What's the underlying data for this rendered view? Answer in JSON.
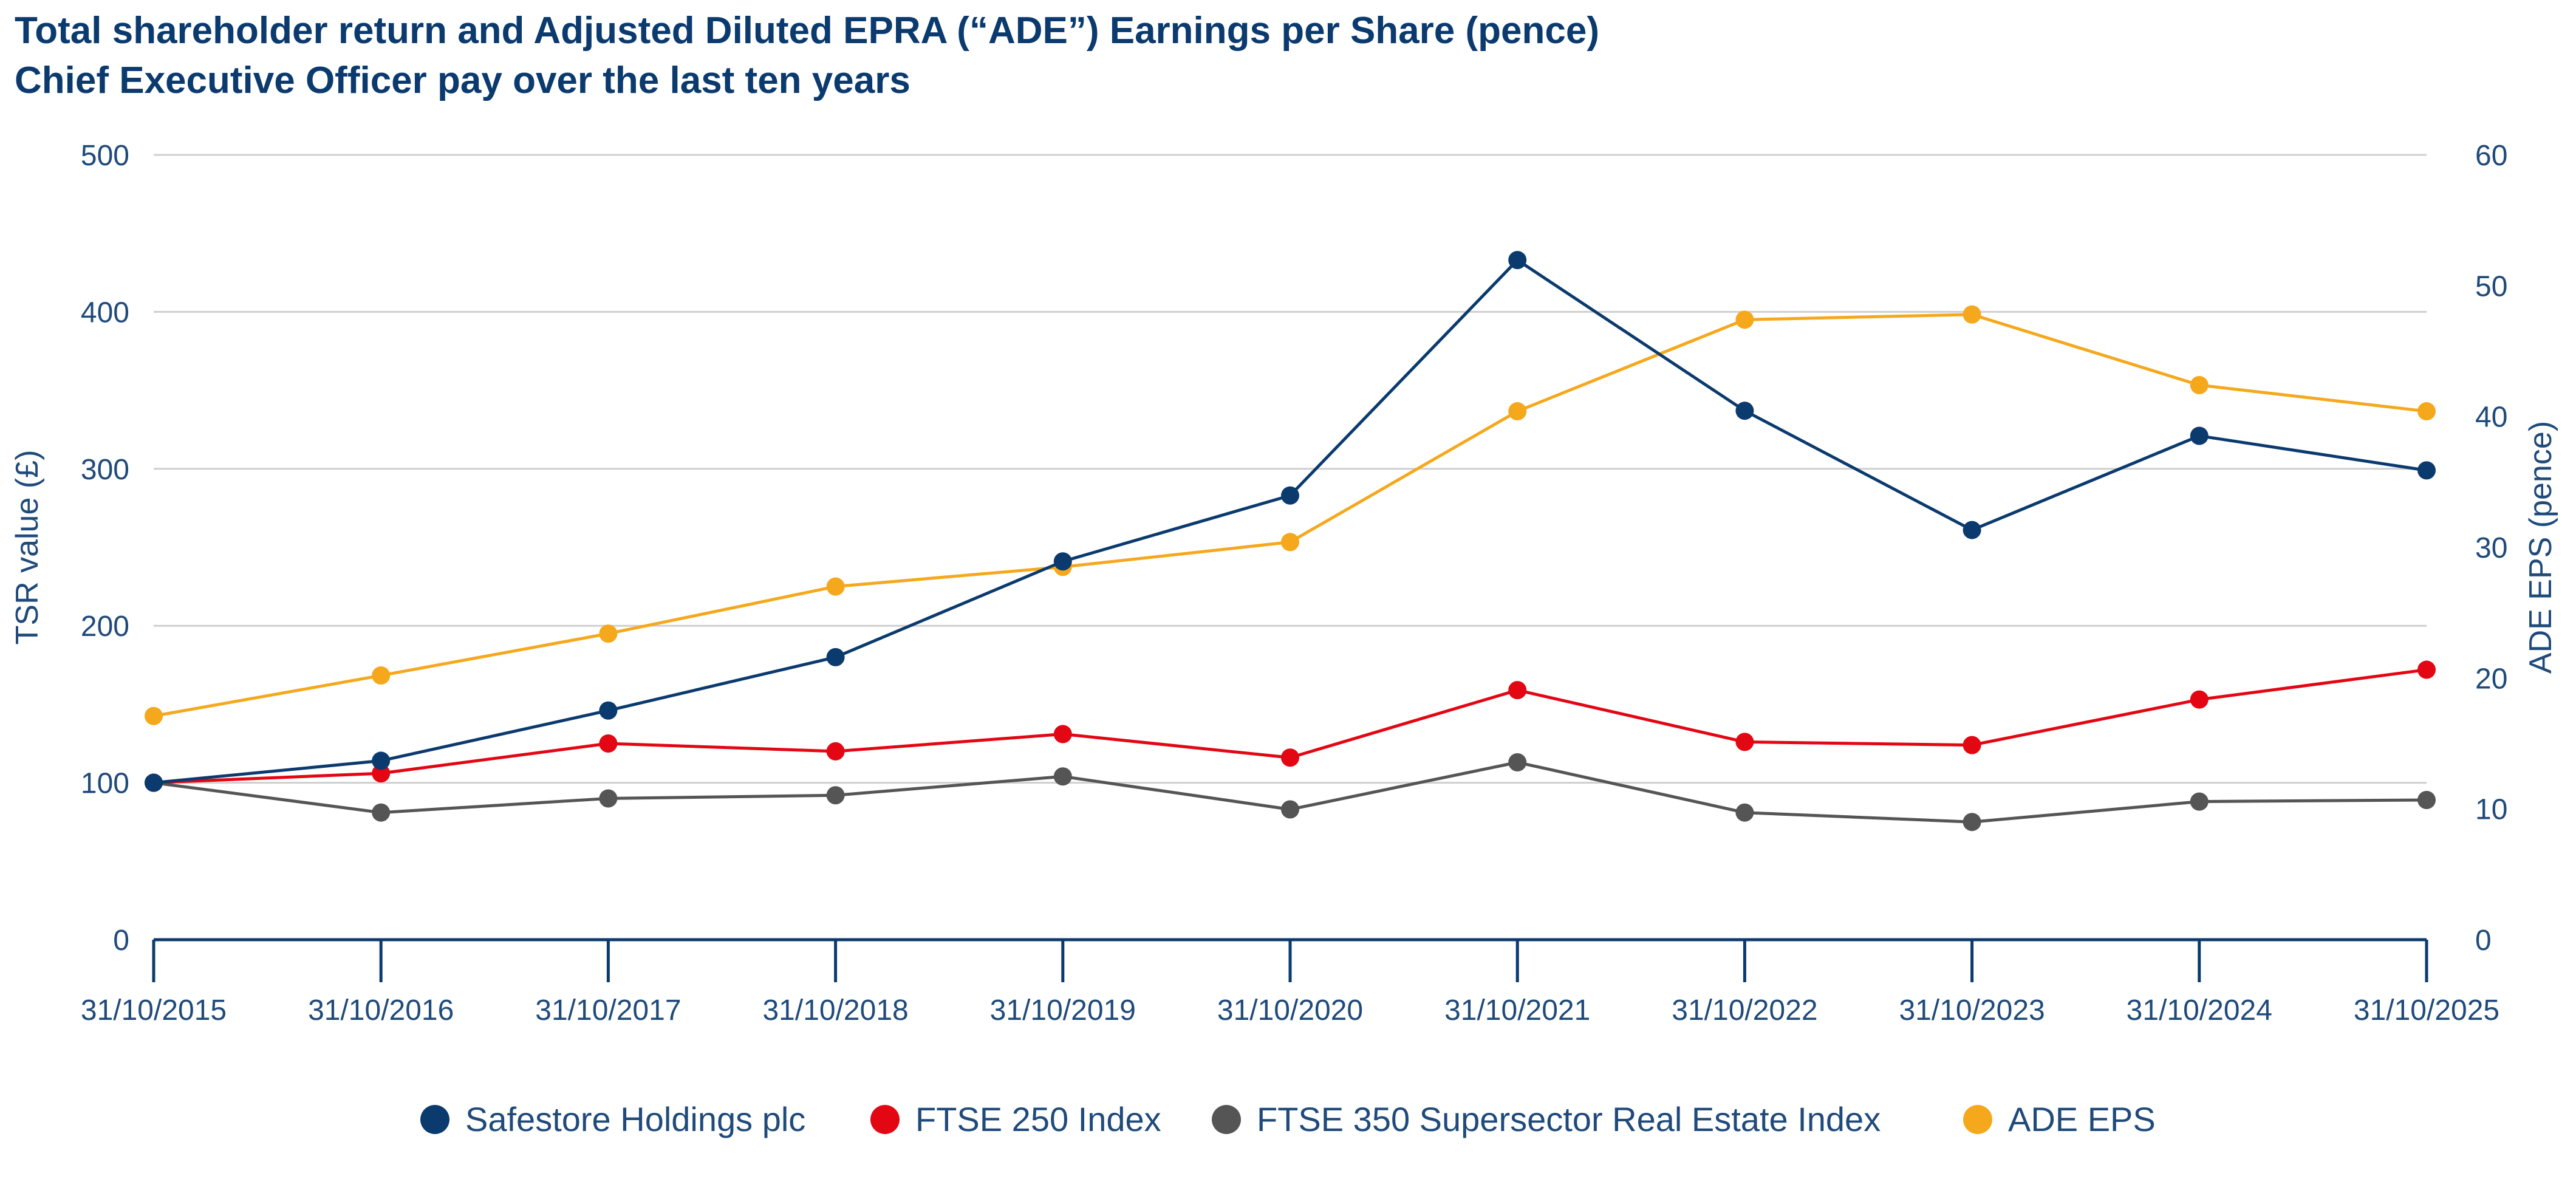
{
  "title_line1": "Total shareholder return and Adjusted Diluted EPRA (“ADE”) Earnings per Share (pence)",
  "title_line2": "Chief Executive Officer pay over the last ten years",
  "chart_data": {
    "type": "line",
    "title": "Total shareholder return and Adjusted Diluted EPRA (“ADE”) Earnings per Share (pence)",
    "subtitle": "Chief Executive Officer pay over the last ten years",
    "x": [
      "31/10/2015",
      "31/10/2016",
      "31/10/2017",
      "31/10/2018",
      "31/10/2019",
      "31/10/2020",
      "31/10/2021",
      "31/10/2022",
      "31/10/2023",
      "31/10/2024",
      "31/10/2025"
    ],
    "ylabel": "TSR value (£)",
    "y2label": "ADE EPS (pence)",
    "ylim": [
      0,
      500
    ],
    "y2lim": [
      0,
      60
    ],
    "yticks": [
      0,
      100,
      200,
      300,
      400,
      500
    ],
    "y2ticks": [
      0,
      10,
      20,
      30,
      40,
      50,
      60
    ],
    "grid": true,
    "legend_position": "bottom",
    "series": [
      {
        "name": "Safestore Holdings plc",
        "axis": "left",
        "color": "#0b3a6e",
        "values": [
          100,
          114,
          146,
          180,
          241,
          283,
          433,
          337,
          261,
          321,
          299
        ]
      },
      {
        "name": "FTSE 250 Index",
        "axis": "left",
        "color": "#e30613",
        "values": [
          100,
          106,
          125,
          120,
          131,
          116,
          159,
          126,
          124,
          153,
          172
        ]
      },
      {
        "name": "FTSE 350 Supersector Real Estate Index",
        "axis": "left",
        "color": "#555555",
        "values": [
          100,
          81,
          90,
          92,
          104,
          83,
          113,
          81,
          75,
          88,
          89
        ]
      },
      {
        "name": "ADE EPS",
        "axis": "right",
        "color": "#f5a81c",
        "values": [
          17.1,
          20.2,
          23.4,
          27.0,
          28.5,
          30.4,
          40.4,
          47.4,
          47.8,
          42.4,
          40.4
        ]
      }
    ]
  }
}
